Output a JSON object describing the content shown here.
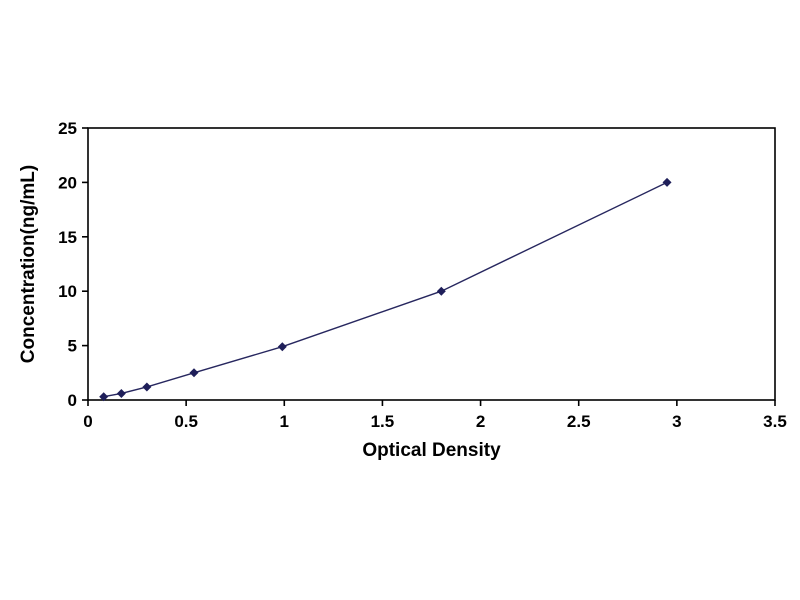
{
  "chart_data": {
    "type": "line",
    "title": "",
    "xlabel": "Optical Density",
    "ylabel": "Concentration(ng/mL)",
    "x": [
      0.08,
      0.17,
      0.3,
      0.54,
      0.99,
      1.8,
      2.95
    ],
    "y": [
      0.3,
      0.6,
      1.2,
      2.5,
      4.9,
      10,
      20
    ],
    "xlim": [
      0,
      3.5
    ],
    "ylim": [
      0,
      25
    ],
    "xticks": [
      0,
      0.5,
      1,
      1.5,
      2,
      2.5,
      3,
      3.5
    ],
    "xtick_labels": [
      "0",
      "0.5",
      "1",
      "1.5",
      "2",
      "2.5",
      "3",
      "3.5"
    ],
    "yticks": [
      0,
      5,
      10,
      15,
      20,
      25
    ],
    "ytick_labels": [
      "0",
      "5",
      "10",
      "15",
      "20",
      "25"
    ],
    "legend": "none",
    "grid": "off",
    "marker": "diamond",
    "line_color": "#27275f",
    "marker_color": "#1f1f5a",
    "axis_color": "#000000",
    "background_color": "#ffffff"
  }
}
